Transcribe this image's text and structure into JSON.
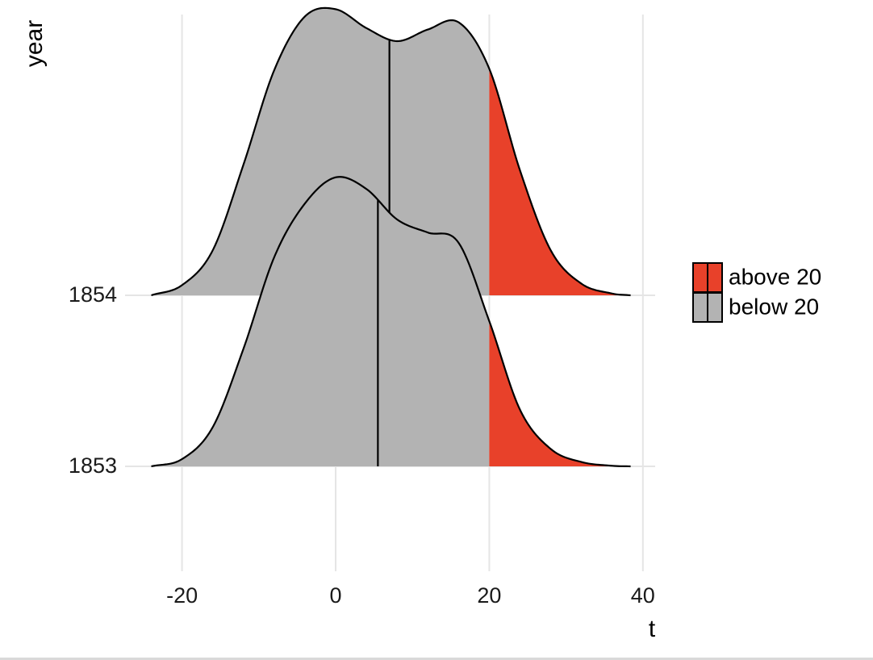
{
  "chart_data": {
    "type": "area",
    "subtype": "ridgeline-density",
    "title": "",
    "xlabel": "t",
    "ylabel": "year",
    "xlim": [
      -24,
      38.4
    ],
    "xticks": [
      -20,
      0,
      20,
      40
    ],
    "xtick_labels": [
      "-20",
      "0",
      "20",
      "40"
    ],
    "ycategories": [
      "1853",
      "1854"
    ],
    "threshold": 20,
    "grid": "major vertical and horizontal (light gray)",
    "legend": {
      "position": "right",
      "entries": [
        {
          "label": "above 20",
          "color": "#e8412a"
        },
        {
          "label": "below 20",
          "color": "#b3b3b3"
        }
      ]
    },
    "series": [
      {
        "name": "1853",
        "median": 5.5,
        "x": [
          -24,
          -20,
          -16,
          -12,
          -8,
          -4,
          0,
          4,
          8,
          12,
          16,
          20,
          24,
          28,
          32,
          36,
          38.4
        ],
        "density": [
          0.0,
          0.025,
          0.135,
          0.405,
          0.72,
          0.905,
          0.995,
          0.955,
          0.85,
          0.805,
          0.77,
          0.5,
          0.195,
          0.06,
          0.015,
          0.002,
          0.0
        ]
      },
      {
        "name": "1854",
        "median": 7.0,
        "x": [
          -24,
          -20,
          -16,
          -12,
          -8,
          -4,
          0,
          4,
          8,
          12,
          16,
          20,
          24,
          28,
          32,
          36,
          38.4
        ],
        "density": [
          0.0,
          0.035,
          0.155,
          0.45,
          0.775,
          0.96,
          0.985,
          0.92,
          0.875,
          0.915,
          0.94,
          0.78,
          0.43,
          0.155,
          0.04,
          0.006,
          0.0
        ]
      }
    ]
  },
  "colors": {
    "above": "#e8412a",
    "below": "#b3b3b3",
    "outline": "#000000",
    "grid": "#e5e5e5"
  }
}
